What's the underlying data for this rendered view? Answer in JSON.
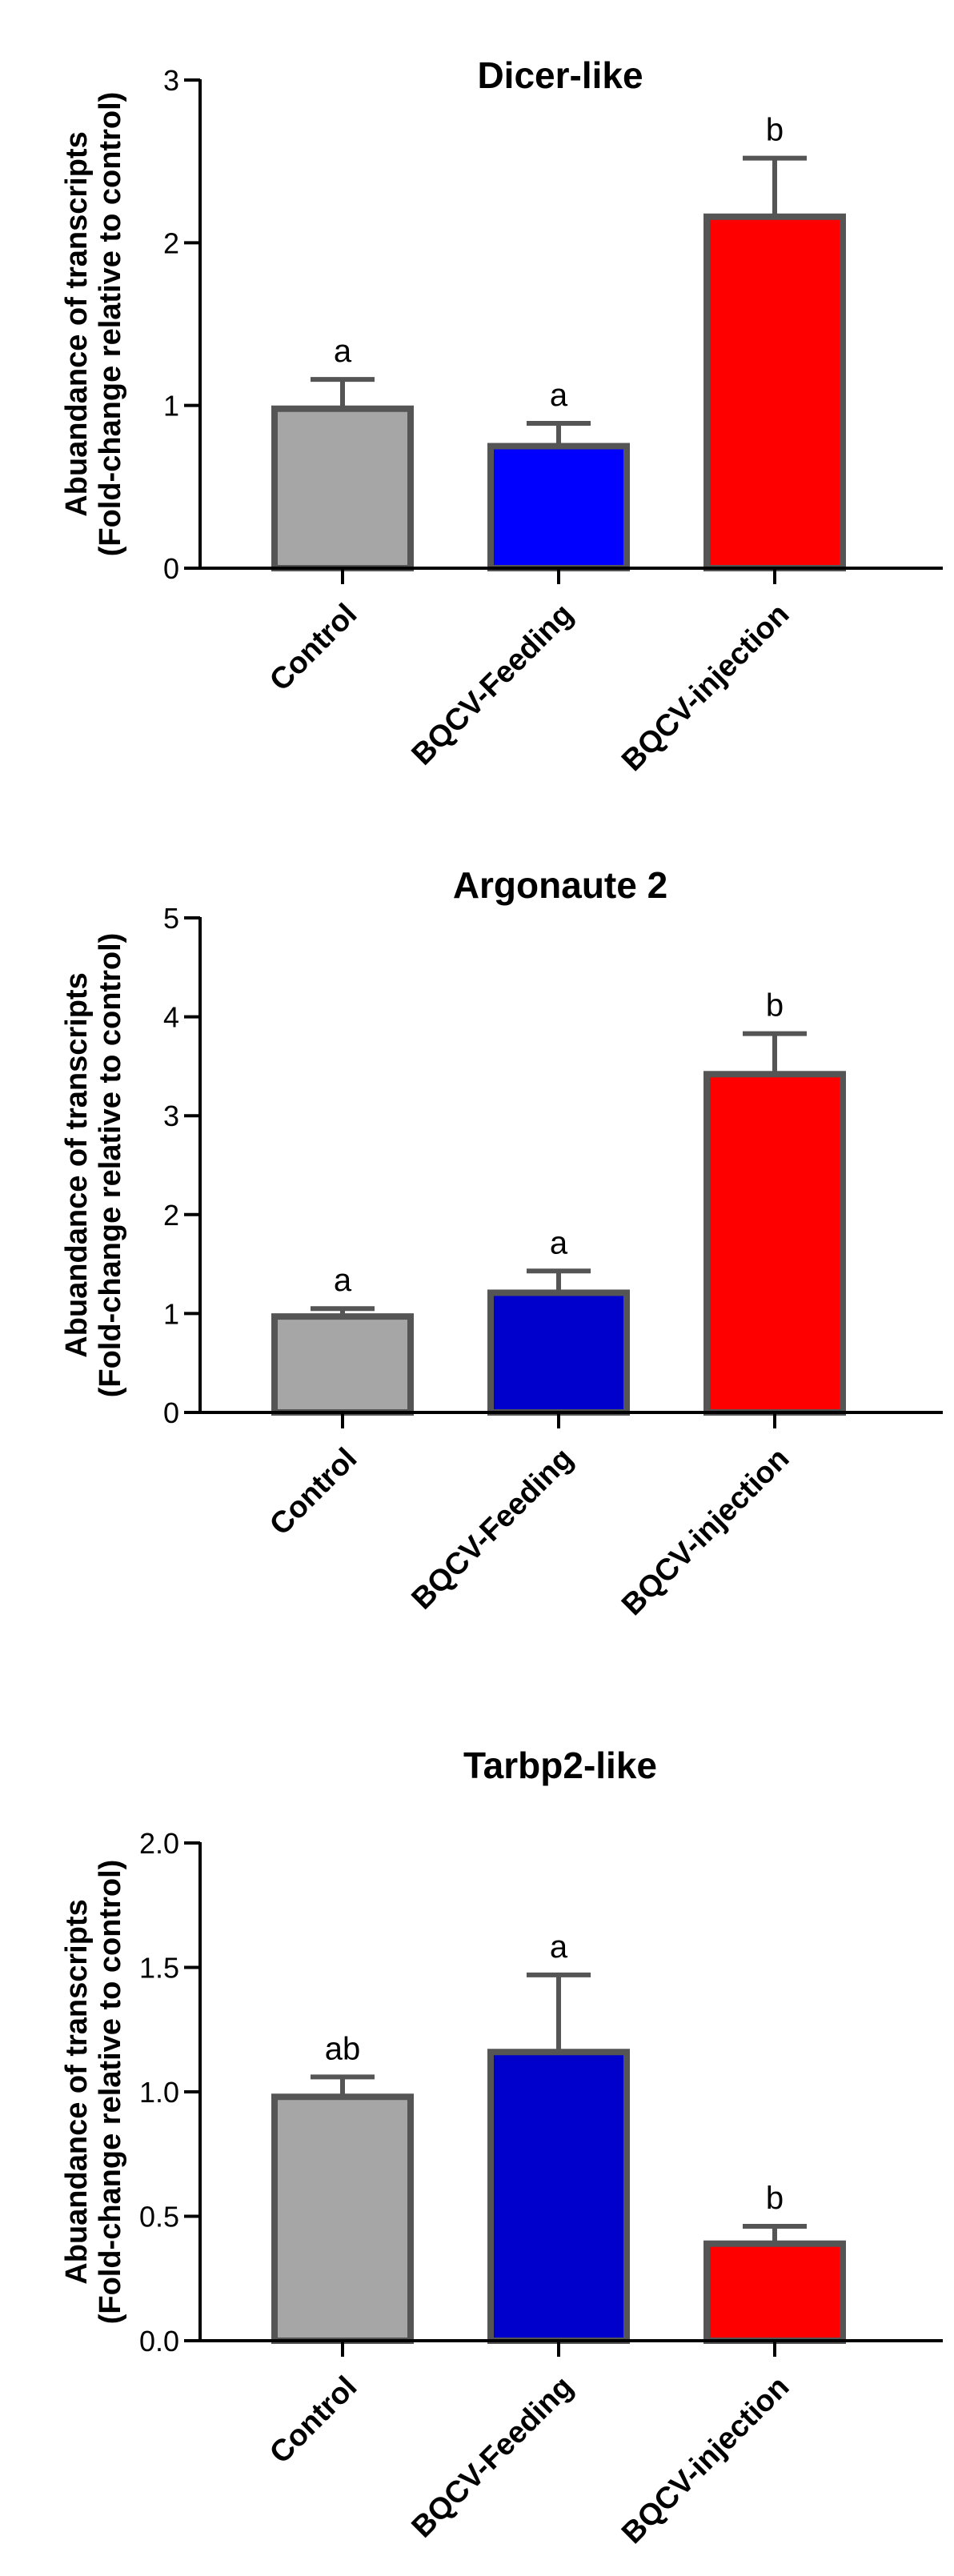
{
  "chart_data": [
    {
      "type": "bar",
      "title": "Dicer-like",
      "ylabel_line1": "Abuandance of transcripts",
      "ylabel_line2": "(Fold-change relative to control)",
      "categories": [
        "Control",
        "BQCV-Feeding",
        "BQCV-injection"
      ],
      "values": [
        0.98,
        0.75,
        2.16
      ],
      "errors": [
        0.18,
        0.14,
        0.36
      ],
      "significance": [
        "a",
        "a",
        "b"
      ],
      "colors": [
        "#a6a6a6",
        "#0000ff",
        "#ff0000"
      ],
      "ylim": [
        0,
        3
      ],
      "yticks": [
        "0",
        "1",
        "2",
        "3"
      ],
      "ytick_values": [
        0,
        1,
        2,
        3
      ]
    },
    {
      "type": "bar",
      "title": "Argonaute 2",
      "ylabel_line1": "Abuandance of transcripts",
      "ylabel_line2": "(Fold-change relative to control)",
      "categories": [
        "Control",
        "BQCV-Feeding",
        "BQCV-injection"
      ],
      "values": [
        0.97,
        1.21,
        3.42
      ],
      "errors": [
        0.08,
        0.22,
        0.41
      ],
      "significance": [
        "a",
        "a",
        "b"
      ],
      "colors": [
        "#a6a6a6",
        "#0000cc",
        "#ff0000"
      ],
      "ylim": [
        0,
        5
      ],
      "yticks": [
        "0",
        "1",
        "2",
        "3",
        "4",
        "5"
      ],
      "ytick_values": [
        0,
        1,
        2,
        3,
        4,
        5
      ]
    },
    {
      "type": "bar",
      "title": "Tarbp2-like",
      "ylabel_line1": "Abuandance of transcripts",
      "ylabel_line2": "(Fold-change relative to control)",
      "categories": [
        "Control",
        "BQCV-Feeding",
        "BQCV-injection"
      ],
      "values": [
        0.98,
        1.16,
        0.39
      ],
      "errors": [
        0.08,
        0.31,
        0.07
      ],
      "significance": [
        "ab",
        "a",
        "b"
      ],
      "colors": [
        "#a6a6a6",
        "#0000cc",
        "#ff0000"
      ],
      "ylim": [
        0,
        2
      ],
      "yticks": [
        "0.0",
        "0.5",
        "1.0",
        "1.5",
        "2.0"
      ],
      "ytick_values": [
        0,
        0.5,
        1,
        1.5,
        2
      ]
    }
  ]
}
